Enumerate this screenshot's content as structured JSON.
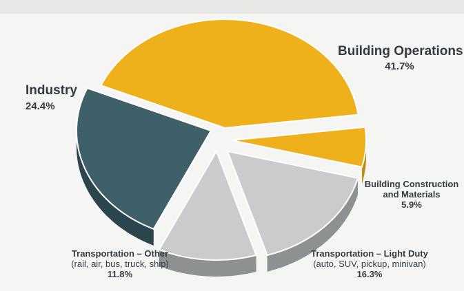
{
  "chart_data": {
    "type": "pie",
    "title": "",
    "slices": [
      {
        "label": "Building Operations",
        "value": 41.7,
        "display": "41.7%",
        "color": "#eeb11c",
        "side": "#c28a10"
      },
      {
        "label": "Building Construction and Materials",
        "value": 5.9,
        "display": "5.9%",
        "color": "#eeb11c",
        "side": "#c28a10"
      },
      {
        "label": "Transportation – Light Duty",
        "sub": "(auto, SUV, pickup, minivan)",
        "value": 16.3,
        "display": "16.3%",
        "color": "#c9cbcc",
        "side": "#8e9192"
      },
      {
        "label": "Transportation – Other",
        "sub": "(rail, air, bus, truck, ship)",
        "value": 11.8,
        "display": "11.8%",
        "color": "#c9cbcc",
        "side": "#8e9192"
      },
      {
        "label": "Industry",
        "value": 24.4,
        "display": "24.4%",
        "color": "#3f5f69",
        "side": "#2c444c"
      }
    ]
  }
}
